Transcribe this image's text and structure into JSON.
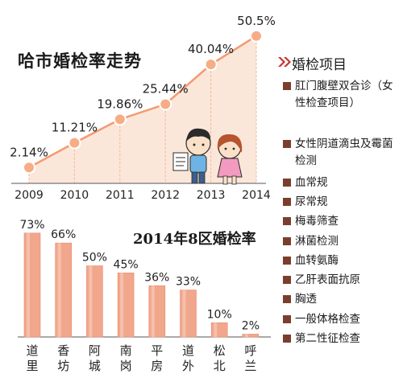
{
  "chart_data": [
    {
      "type": "area",
      "title": "哈市婚检率走势",
      "categories": [
        "2009",
        "2010",
        "2011",
        "2012",
        "2013",
        "2014"
      ],
      "values": [
        2.14,
        11.21,
        19.86,
        25.44,
        40.04,
        50.5
      ],
      "data_labels": [
        "2.14%",
        "11.21%",
        "19.86%",
        "25.44%",
        "40.04%",
        "50.5%"
      ],
      "grid": false
    },
    {
      "type": "bar",
      "title": "2014年8区婚检率",
      "categories": [
        "道里",
        "香坊",
        "阿城",
        "南岗",
        "平房",
        "道外",
        "松北",
        "呼兰"
      ],
      "values": [
        73,
        66,
        50,
        45,
        36,
        33,
        10,
        2
      ],
      "data_labels": [
        "73%",
        "66%",
        "50%",
        "45%",
        "36%",
        "33%",
        "10%",
        "2%"
      ],
      "grid": false
    }
  ],
  "colors": {
    "bar_fill": "#f1a78c",
    "line": "#f39a72",
    "point": "#f6ad86",
    "area": "#fbe7d9",
    "square": "#7a3e2e",
    "arrow": "#c7312a"
  },
  "icons": {
    "section_arrow": "double-chevron-right-icon",
    "illustration": "couple-cartoon"
  },
  "items_panel": {
    "heading": "婚检项目",
    "items": [
      "肛门腹壁双合诊（女性检查项目）",
      "女性阴道滴虫及霉菌检测",
      "血常规",
      "尿常规",
      "梅毒筛查",
      "淋菌检测",
      "血转氨酶",
      "乙肝表面抗原",
      "胸透",
      "一般体格检查",
      "第二性征检查"
    ]
  }
}
